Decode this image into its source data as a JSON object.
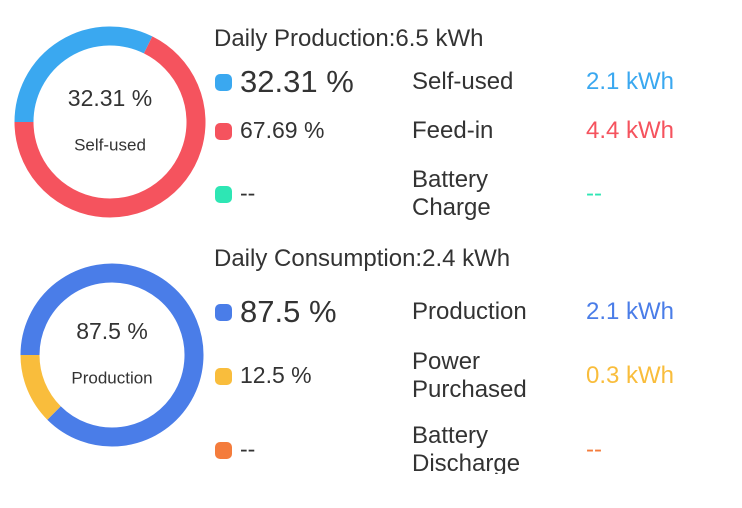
{
  "sections": [
    {
      "title": "Daily Production:6.5 kWh",
      "items": [
        {
          "color": "#3aa8f0",
          "percent": 32.31,
          "percent_label": "32.31 %",
          "name": "Self-used",
          "amount": "2.1 kWh"
        },
        {
          "color": "#f5535e",
          "percent": 67.69,
          "percent_label": "67.69 %",
          "name": "Feed-in",
          "amount": "4.4 kWh"
        },
        {
          "color": "#2ee6b4",
          "percent_label": "--",
          "name": "Battery Charge",
          "amount": "--"
        }
      ]
    },
    {
      "title": "Daily Consumption:2.4 kWh",
      "items": [
        {
          "color": "#4a7de8",
          "percent": 87.5,
          "percent_label": "87.5 %",
          "name": "Production",
          "amount": "2.1 kWh"
        },
        {
          "color": "#f9bd3c",
          "percent": 12.5,
          "percent_label": "12.5 %",
          "name": "Power Purchased",
          "amount": "0.3 kWh"
        },
        {
          "color": "#f47c3c",
          "percent_label": "--",
          "name": "Battery Discharge",
          "amount": "--"
        }
      ]
    }
  ]
}
